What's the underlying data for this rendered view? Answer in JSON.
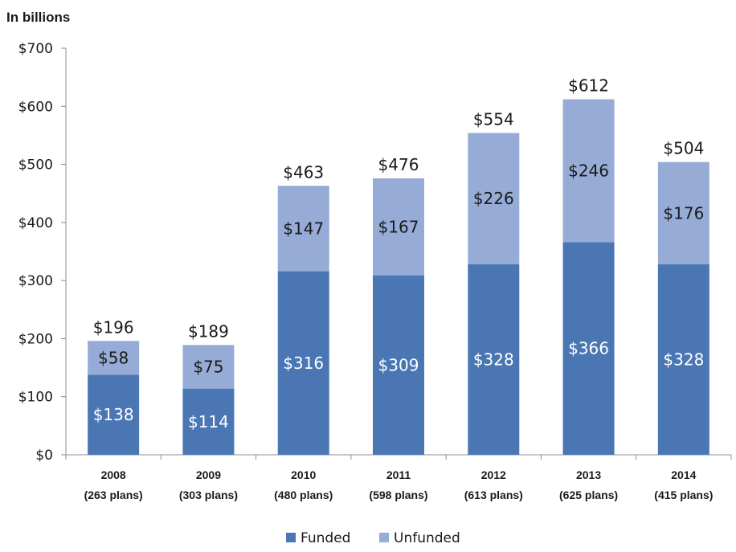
{
  "chart_data": {
    "type": "bar",
    "stacked": true,
    "unit_label": "In billions",
    "categories": [
      "2008",
      "2009",
      "2010",
      "2011",
      "2012",
      "2013",
      "2014"
    ],
    "category_sublabels": [
      "(263 plans)",
      "(303 plans)",
      "(480 plans)",
      "(598 plans)",
      "(613 plans)",
      "(625 plans)",
      "(415 plans)"
    ],
    "series": [
      {
        "name": "Funded",
        "color": "#4a77b4",
        "values": [
          138,
          114,
          316,
          309,
          328,
          366,
          328
        ],
        "labels": [
          "$138",
          "$114",
          "$316",
          "$309",
          "$328",
          "$366",
          "$328"
        ],
        "label_color": "#ffffff"
      },
      {
        "name": "Unfunded",
        "color": "#96acd6",
        "values": [
          58,
          75,
          147,
          167,
          226,
          246,
          176
        ],
        "labels": [
          "$58",
          "$75",
          "$147",
          "$167",
          "$226",
          "$246",
          "$176"
        ],
        "label_color": "#1a1a1a"
      }
    ],
    "totals": [
      "$196",
      "$189",
      "$463",
      "$476",
      "$554",
      "$612",
      "$504"
    ],
    "ylim": [
      0,
      700
    ],
    "yticks": [
      0,
      100,
      200,
      300,
      400,
      500,
      600,
      700
    ],
    "ytick_labels": [
      "$0",
      "$100",
      "$200",
      "$300",
      "$400",
      "$500",
      "$600",
      "$700"
    ],
    "grid": false,
    "legend_position": "bottom"
  }
}
